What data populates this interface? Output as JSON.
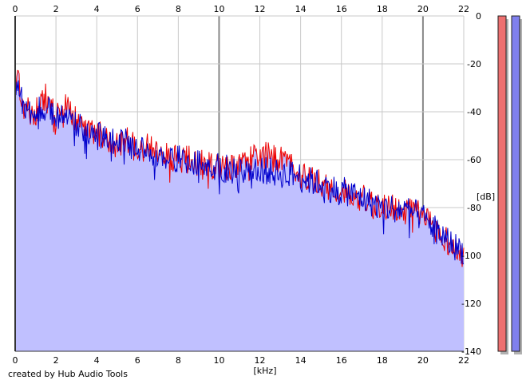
{
  "footer_text": "created by Hub Audio Tools",
  "chart_data": {
    "type": "line",
    "title": "",
    "xlabel": "[kHz]",
    "ylabel": "[dB]",
    "xlim": [
      0,
      22
    ],
    "ylim": [
      -140,
      0
    ],
    "x_ticks": [
      0,
      2,
      4,
      6,
      8,
      10,
      12,
      14,
      16,
      18,
      20,
      22
    ],
    "y_ticks": [
      0,
      -20,
      -40,
      -60,
      -80,
      -100,
      -120,
      -140
    ],
    "grid": true,
    "fill": "#c0c0ff",
    "series": [
      {
        "color": "#ee0000",
        "x": [
          0,
          0.2,
          0.5,
          1,
          1.5,
          2,
          2.5,
          3,
          3.5,
          4,
          4.5,
          5,
          5.5,
          6,
          6.5,
          7,
          7.5,
          8,
          8.5,
          9,
          9.5,
          10,
          10.5,
          11,
          11.5,
          12,
          12.5,
          13,
          13.5,
          14,
          14.5,
          15,
          15.5,
          16,
          16.5,
          17,
          17.5,
          18,
          18.5,
          19,
          19.5,
          20,
          20.5,
          21,
          21.5,
          22
        ],
        "values": [
          -20,
          -30,
          -40,
          -40,
          -34,
          -42,
          -36,
          -44,
          -46,
          -50,
          -50,
          -55,
          -52,
          -56,
          -54,
          -58,
          -58,
          -60,
          -60,
          -61,
          -62,
          -63,
          -63,
          -61,
          -60,
          -58,
          -59,
          -60,
          -62,
          -66,
          -68,
          -70,
          -72,
          -74,
          -74,
          -76,
          -78,
          -79,
          -80,
          -81,
          -82,
          -83,
          -88,
          -92,
          -97,
          -100
        ]
      },
      {
        "color": "#0000cc",
        "x": [
          0,
          0.2,
          0.5,
          1,
          1.5,
          2,
          2.5,
          3,
          3.5,
          4,
          4.5,
          5,
          5.5,
          6,
          6.5,
          7,
          7.5,
          8,
          8.5,
          9,
          9.5,
          10,
          10.5,
          11,
          11.5,
          12,
          12.5,
          13,
          13.5,
          14,
          14.5,
          15,
          15.5,
          16,
          16.5,
          17,
          17.5,
          18,
          18.5,
          19,
          19.5,
          20,
          20.5,
          21,
          21.5,
          22
        ],
        "values": [
          -28,
          -32,
          -38,
          -40,
          -38,
          -42,
          -40,
          -46,
          -48,
          -50,
          -51,
          -53,
          -53,
          -56,
          -56,
          -58,
          -59,
          -60,
          -60,
          -61,
          -62,
          -63,
          -64,
          -64,
          -64,
          -64,
          -65,
          -66,
          -66,
          -67,
          -69,
          -70,
          -72,
          -73,
          -74,
          -76,
          -78,
          -80,
          -80,
          -81,
          -82,
          -84,
          -88,
          -92,
          -96,
          -98
        ]
      }
    ],
    "level_meters": [
      {
        "channel": "left",
        "color": "#ee7070",
        "level_db": 0
      },
      {
        "channel": "right",
        "color": "#8080ee",
        "level_db": 0
      }
    ]
  }
}
